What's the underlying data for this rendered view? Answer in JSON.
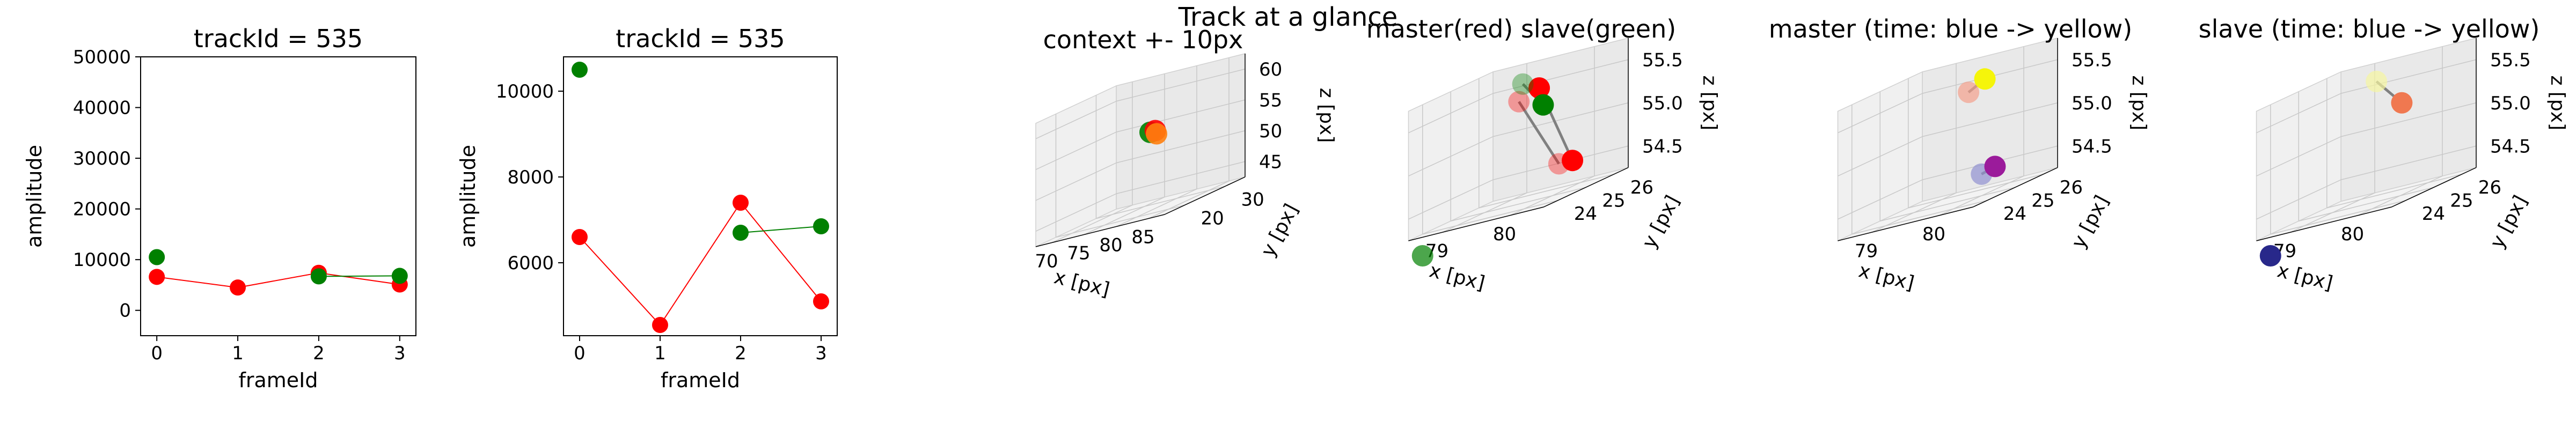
{
  "suptitle": "Track at a glance",
  "colors": {
    "master": "#ff0000",
    "slave": "#008000",
    "line": "#808080"
  },
  "chart_data": [
    {
      "type": "scatter",
      "title": "trackId = 535",
      "xlabel": "frameId",
      "ylabel": "amplitude",
      "xticks": [
        0,
        1,
        2,
        3
      ],
      "yticks": [
        0,
        10000,
        20000,
        30000,
        40000,
        50000
      ],
      "xlim": [
        -0.2,
        3.2
      ],
      "ylim": [
        -5000,
        50000
      ],
      "series": [
        {
          "color": "red",
          "x": [
            0,
            1,
            2,
            3
          ],
          "y": [
            6600,
            4500,
            7400,
            5100
          ],
          "connected": true
        },
        {
          "color": "green",
          "x": [
            0,
            2,
            3
          ],
          "y": [
            10500,
            6700,
            6800
          ],
          "connected_from_index": 1
        }
      ]
    },
    {
      "type": "scatter",
      "title": "trackId = 535",
      "xlabel": "frameId",
      "ylabel": "amplitude",
      "xticks": [
        0,
        1,
        2,
        3
      ],
      "yticks": [
        6000,
        8000,
        10000
      ],
      "xlim": [
        -0.2,
        3.2
      ],
      "ylim": [
        4300,
        10800
      ],
      "series": [
        {
          "color": "red",
          "x": [
            0,
            1,
            2,
            3
          ],
          "y": [
            6600,
            4550,
            7400,
            5100
          ],
          "connected": true
        },
        {
          "color": "green",
          "x": [
            0,
            2,
            3
          ],
          "y": [
            10500,
            6700,
            6850
          ],
          "connected_from_index": 1
        }
      ]
    },
    {
      "type": "scatter3d",
      "title": "context +- 10px",
      "xlabel": "x [px]",
      "ylabel": "y [px]",
      "zlabel": "z [px]",
      "xticks": [
        "70",
        "75",
        "80",
        "85"
      ],
      "yticks": [
        "20",
        "30"
      ],
      "zticks": [
        "45",
        "50",
        "55",
        "60"
      ],
      "points": [
        {
          "x": 79,
          "y": 25,
          "z": 55,
          "color": "green"
        },
        {
          "x": 79.5,
          "y": 25.5,
          "z": 55,
          "color": "red"
        },
        {
          "x": 80,
          "y": 25,
          "z": 54.5,
          "color": "orange"
        }
      ]
    },
    {
      "type": "scatter3d",
      "title": "master(red) slave(green)",
      "xlabel": "x [px]",
      "ylabel": "y [px]",
      "zlabel": "z [px]",
      "xticks": [
        "79",
        "80"
      ],
      "yticks": [
        "24",
        "25",
        "26"
      ],
      "zticks": [
        "54.5",
        "55.0",
        "55.5"
      ],
      "master": [
        {
          "x": 79.3,
          "y": 25.5,
          "z": 55.4,
          "alpha": 0.35
        },
        {
          "x": 79.6,
          "y": 25.5,
          "z": 55.5,
          "alpha": 1.0
        },
        {
          "x": 80.1,
          "y": 25.0,
          "z": 54.6,
          "alpha": 0.35
        },
        {
          "x": 80.3,
          "y": 25.0,
          "z": 54.6,
          "alpha": 1.0
        }
      ],
      "slave": [
        {
          "x": 79.4,
          "y": 25.4,
          "z": 55.6,
          "alpha": 0.35
        },
        {
          "x": 79.7,
          "y": 25.4,
          "z": 55.3,
          "alpha": 1.0
        },
        {
          "x": 78.5,
          "y": 24.0,
          "z": 54.0,
          "alpha": 0.7
        }
      ]
    },
    {
      "type": "scatter3d",
      "title": "master (time: blue -> yellow)",
      "xlabel": "x [px]",
      "ylabel": "y [px]",
      "zlabel": "z [px]",
      "xticks": [
        "79",
        "80"
      ],
      "yticks": [
        "24",
        "25",
        "26"
      ],
      "zticks": [
        "54.5",
        "55.0",
        "55.5"
      ],
      "points": [
        {
          "x": 79.6,
          "y": 25.5,
          "z": 55.45,
          "color": "#f4a08c",
          "alpha": 0.7
        },
        {
          "x": 79.8,
          "y": 25.6,
          "z": 55.55,
          "color": "#f5f50a",
          "alpha": 1.0
        },
        {
          "x": 80.0,
          "y": 25.0,
          "z": 54.5,
          "color": "#9090d0",
          "alpha": 0.7
        },
        {
          "x": 80.2,
          "y": 25.0,
          "z": 54.55,
          "color": "#9b1b9b",
          "alpha": 1.0
        }
      ]
    },
    {
      "type": "scatter3d",
      "title": "slave (time: blue -> yellow)",
      "xlabel": "x [px]",
      "ylabel": "y [px]",
      "zlabel": "z [px]",
      "xticks": [
        "79",
        "80"
      ],
      "yticks": [
        "24",
        "25",
        "26"
      ],
      "zticks": [
        "54.5",
        "55.0",
        "55.5"
      ],
      "points": [
        {
          "x": 79.4,
          "y": 25.6,
          "z": 55.6,
          "color": "#f5f5a0",
          "alpha": 0.7
        },
        {
          "x": 79.9,
          "y": 25.3,
          "z": 55.3,
          "color": "#f07850",
          "alpha": 1.0
        },
        {
          "x": 78.5,
          "y": 24.0,
          "z": 54.0,
          "color": "#28288a",
          "alpha": 1.0
        }
      ]
    }
  ]
}
